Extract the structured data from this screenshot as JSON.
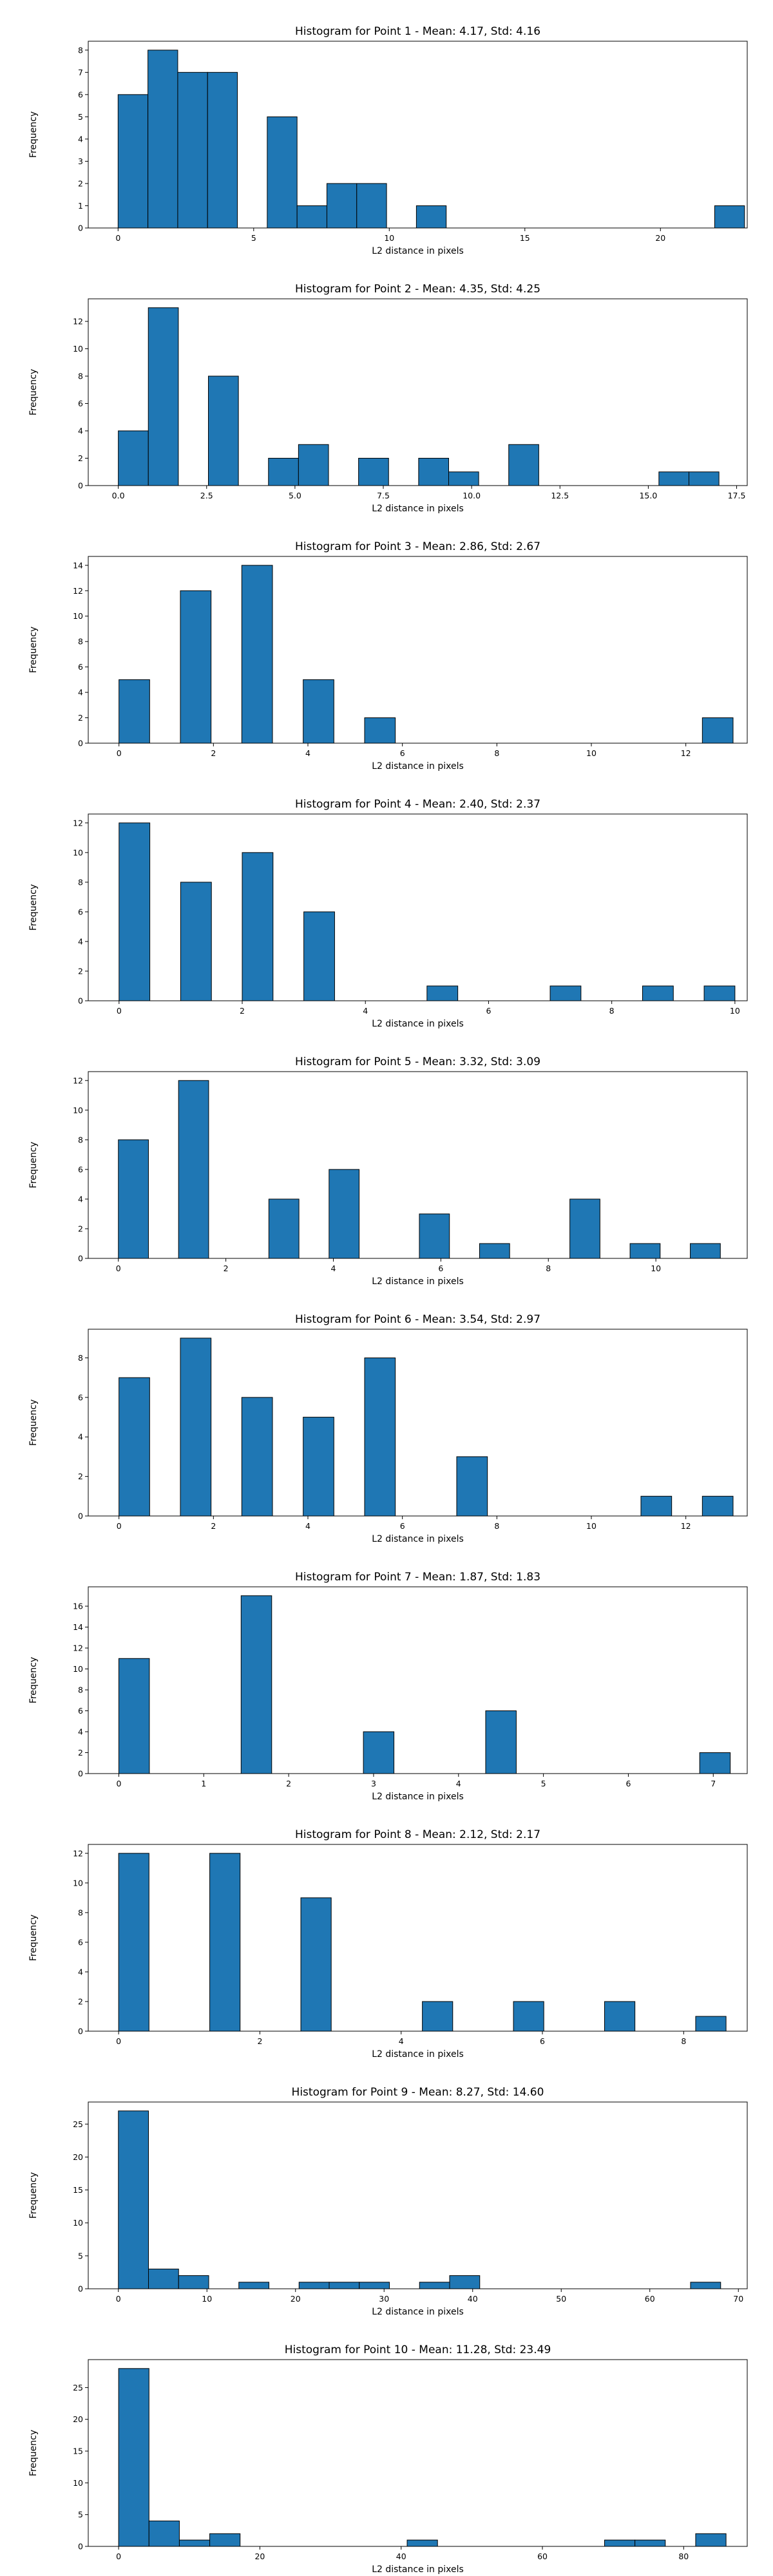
{
  "chart_data": [
    {
      "type": "bar",
      "title": "Histogram for Point 1 - Mean: 4.17, Std: 4.16",
      "xlabel": "L2 distance in pixels",
      "ylabel": "Frequency",
      "xlim": [
        -1.1,
        23.2
      ],
      "ylim": [
        0,
        8.4
      ],
      "xticks": [
        0,
        5,
        10,
        15,
        20
      ],
      "xtick_labels": [
        "0",
        "5",
        "10",
        "15",
        "20"
      ],
      "yticks": [
        0,
        1,
        2,
        3,
        4,
        5,
        6,
        7,
        8
      ],
      "ytick_labels": [
        "0",
        "1",
        "2",
        "3",
        "4",
        "5",
        "6",
        "7",
        "8"
      ],
      "bins": [
        {
          "x0": 0.0,
          "x1": 1.1,
          "count": 6
        },
        {
          "x0": 1.1,
          "x1": 2.2,
          "count": 8
        },
        {
          "x0": 2.2,
          "x1": 3.3,
          "count": 7
        },
        {
          "x0": 3.3,
          "x1": 4.4,
          "count": 7
        },
        {
          "x0": 5.5,
          "x1": 6.6,
          "count": 5
        },
        {
          "x0": 6.6,
          "x1": 7.7,
          "count": 1
        },
        {
          "x0": 7.7,
          "x1": 8.8,
          "count": 2
        },
        {
          "x0": 8.8,
          "x1": 9.9,
          "count": 2
        },
        {
          "x0": 11.0,
          "x1": 12.1,
          "count": 1
        },
        {
          "x0": 22.0,
          "x1": 23.1,
          "count": 1
        }
      ]
    },
    {
      "type": "bar",
      "title": "Histogram for Point 2 - Mean: 4.35, Std: 4.25",
      "xlabel": "L2 distance in pixels",
      "ylabel": "Frequency",
      "xlim": [
        -0.85,
        17.8
      ],
      "ylim": [
        0,
        13.65
      ],
      "xticks": [
        0,
        2.5,
        5,
        7.5,
        10,
        12.5,
        15,
        17.5
      ],
      "xtick_labels": [
        "0.0",
        "2.5",
        "5.0",
        "7.5",
        "10.0",
        "12.5",
        "15.0",
        "17.5"
      ],
      "yticks": [
        0,
        2,
        4,
        6,
        8,
        10,
        12
      ],
      "ytick_labels": [
        "0",
        "2",
        "4",
        "6",
        "8",
        "10",
        "12"
      ],
      "bins": [
        {
          "x0": 0.0,
          "x1": 0.85,
          "count": 4
        },
        {
          "x0": 0.85,
          "x1": 1.7,
          "count": 13
        },
        {
          "x0": 2.55,
          "x1": 3.4,
          "count": 8
        },
        {
          "x0": 4.25,
          "x1": 5.1,
          "count": 2
        },
        {
          "x0": 5.1,
          "x1": 5.95,
          "count": 3
        },
        {
          "x0": 6.8,
          "x1": 7.65,
          "count": 2
        },
        {
          "x0": 8.5,
          "x1": 9.35,
          "count": 2
        },
        {
          "x0": 9.35,
          "x1": 10.2,
          "count": 1
        },
        {
          "x0": 11.05,
          "x1": 11.9,
          "count": 3
        },
        {
          "x0": 15.3,
          "x1": 16.15,
          "count": 1
        },
        {
          "x0": 16.15,
          "x1": 17.0,
          "count": 1
        }
      ]
    },
    {
      "type": "bar",
      "title": "Histogram for Point 3 - Mean: 2.86, Std: 2.67",
      "xlabel": "L2 distance in pixels",
      "ylabel": "Frequency",
      "xlim": [
        -0.65,
        13.3
      ],
      "ylim": [
        0,
        14.7
      ],
      "xticks": [
        0,
        2,
        4,
        6,
        8,
        10,
        12
      ],
      "xtick_labels": [
        "0",
        "2",
        "4",
        "6",
        "8",
        "10",
        "12"
      ],
      "yticks": [
        0,
        2,
        4,
        6,
        8,
        10,
        12,
        14
      ],
      "ytick_labels": [
        "0",
        "2",
        "4",
        "6",
        "8",
        "10",
        "12",
        "14"
      ],
      "bins": [
        {
          "x0": 0.0,
          "x1": 0.65,
          "count": 5
        },
        {
          "x0": 1.3,
          "x1": 1.95,
          "count": 12
        },
        {
          "x0": 2.6,
          "x1": 3.25,
          "count": 14
        },
        {
          "x0": 3.9,
          "x1": 4.55,
          "count": 5
        },
        {
          "x0": 5.2,
          "x1": 5.85,
          "count": 2
        },
        {
          "x0": 12.35,
          "x1": 13.0,
          "count": 2
        }
      ]
    },
    {
      "type": "bar",
      "title": "Histogram for Point 4 - Mean: 2.40, Std: 2.37",
      "xlabel": "L2 distance in pixels",
      "ylabel": "Frequency",
      "xlim": [
        -0.5,
        10.2
      ],
      "ylim": [
        0,
        12.6
      ],
      "xticks": [
        0,
        2,
        4,
        6,
        8,
        10
      ],
      "xtick_labels": [
        "0",
        "2",
        "4",
        "6",
        "8",
        "10"
      ],
      "yticks": [
        0,
        2,
        4,
        6,
        8,
        10,
        12
      ],
      "ytick_labels": [
        "0",
        "2",
        "4",
        "6",
        "8",
        "10",
        "12"
      ],
      "bins": [
        {
          "x0": 0.0,
          "x1": 0.5,
          "count": 12
        },
        {
          "x0": 1.0,
          "x1": 1.5,
          "count": 8
        },
        {
          "x0": 2.0,
          "x1": 2.5,
          "count": 10
        },
        {
          "x0": 3.0,
          "x1": 3.5,
          "count": 6
        },
        {
          "x0": 5.0,
          "x1": 5.5,
          "count": 1
        },
        {
          "x0": 7.0,
          "x1": 7.5,
          "count": 1
        },
        {
          "x0": 8.5,
          "x1": 9.0,
          "count": 1
        },
        {
          "x0": 9.5,
          "x1": 10.0,
          "count": 1
        }
      ]
    },
    {
      "type": "bar",
      "title": "Histogram for Point 5 - Mean: 3.32, Std: 3.09",
      "xlabel": "L2 distance in pixels",
      "ylabel": "Frequency",
      "xlim": [
        -0.56,
        11.7
      ],
      "ylim": [
        0,
        12.6
      ],
      "xticks": [
        0,
        2,
        4,
        6,
        8,
        10
      ],
      "xtick_labels": [
        "0",
        "2",
        "4",
        "6",
        "8",
        "10"
      ],
      "yticks": [
        0,
        2,
        4,
        6,
        8,
        10,
        12
      ],
      "ytick_labels": [
        "0",
        "2",
        "4",
        "6",
        "8",
        "10",
        "12"
      ],
      "bins": [
        {
          "x0": 0.0,
          "x1": 0.56,
          "count": 8
        },
        {
          "x0": 1.12,
          "x1": 1.68,
          "count": 12
        },
        {
          "x0": 2.8,
          "x1": 3.36,
          "count": 4
        },
        {
          "x0": 3.92,
          "x1": 4.48,
          "count": 6
        },
        {
          "x0": 5.6,
          "x1": 6.16,
          "count": 3
        },
        {
          "x0": 6.72,
          "x1": 7.28,
          "count": 1
        },
        {
          "x0": 8.4,
          "x1": 8.96,
          "count": 4
        },
        {
          "x0": 9.52,
          "x1": 10.08,
          "count": 1
        },
        {
          "x0": 10.64,
          "x1": 11.2,
          "count": 1
        }
      ]
    },
    {
      "type": "bar",
      "title": "Histogram for Point 6 - Mean: 3.54, Std: 2.97",
      "xlabel": "L2 distance in pixels",
      "ylabel": "Frequency",
      "xlim": [
        -0.65,
        13.3
      ],
      "ylim": [
        0,
        9.45
      ],
      "xticks": [
        0,
        2,
        4,
        6,
        8,
        10,
        12
      ],
      "xtick_labels": [
        "0",
        "2",
        "4",
        "6",
        "8",
        "10",
        "12"
      ],
      "yticks": [
        0,
        2,
        4,
        6,
        8
      ],
      "ytick_labels": [
        "0",
        "2",
        "4",
        "6",
        "8"
      ],
      "bins": [
        {
          "x0": 0.0,
          "x1": 0.65,
          "count": 7
        },
        {
          "x0": 1.3,
          "x1": 1.95,
          "count": 9
        },
        {
          "x0": 2.6,
          "x1": 3.25,
          "count": 6
        },
        {
          "x0": 3.9,
          "x1": 4.55,
          "count": 5
        },
        {
          "x0": 5.2,
          "x1": 5.85,
          "count": 8
        },
        {
          "x0": 7.15,
          "x1": 7.8,
          "count": 3
        },
        {
          "x0": 11.05,
          "x1": 11.7,
          "count": 1
        },
        {
          "x0": 12.35,
          "x1": 13.0,
          "count": 1
        }
      ]
    },
    {
      "type": "bar",
      "title": "Histogram for Point 7 - Mean: 1.87, Std: 1.83",
      "xlabel": "L2 distance in pixels",
      "ylabel": "Frequency",
      "xlim": [
        -0.36,
        7.4
      ],
      "ylim": [
        0,
        17.85
      ],
      "xticks": [
        0,
        1,
        2,
        3,
        4,
        5,
        6,
        7
      ],
      "xtick_labels": [
        "0",
        "1",
        "2",
        "3",
        "4",
        "5",
        "6",
        "7"
      ],
      "yticks": [
        0,
        2,
        4,
        6,
        8,
        10,
        12,
        14,
        16
      ],
      "ytick_labels": [
        "0",
        "2",
        "4",
        "6",
        "8",
        "10",
        "12",
        "14",
        "16"
      ],
      "bins": [
        {
          "x0": 0.0,
          "x1": 0.36,
          "count": 11
        },
        {
          "x0": 1.44,
          "x1": 1.8,
          "count": 17
        },
        {
          "x0": 2.88,
          "x1": 3.24,
          "count": 4
        },
        {
          "x0": 4.32,
          "x1": 4.68,
          "count": 6
        },
        {
          "x0": 6.84,
          "x1": 7.2,
          "count": 2
        }
      ]
    },
    {
      "type": "bar",
      "title": "Histogram for Point 8 - Mean: 2.12, Std: 2.17",
      "xlabel": "L2 distance in pixels",
      "ylabel": "Frequency",
      "xlim": [
        -0.43,
        8.9
      ],
      "ylim": [
        0,
        12.6
      ],
      "xticks": [
        0,
        2,
        4,
        6,
        8
      ],
      "xtick_labels": [
        "0",
        "2",
        "4",
        "6",
        "8"
      ],
      "yticks": [
        0,
        2,
        4,
        6,
        8,
        10,
        12
      ],
      "ytick_labels": [
        "0",
        "2",
        "4",
        "6",
        "8",
        "10",
        "12"
      ],
      "bins": [
        {
          "x0": 0.0,
          "x1": 0.43,
          "count": 12
        },
        {
          "x0": 1.29,
          "x1": 1.72,
          "count": 12
        },
        {
          "x0": 2.58,
          "x1": 3.01,
          "count": 9
        },
        {
          "x0": 4.3,
          "x1": 4.73,
          "count": 2
        },
        {
          "x0": 5.59,
          "x1": 6.02,
          "count": 2
        },
        {
          "x0": 6.88,
          "x1": 7.31,
          "count": 2
        },
        {
          "x0": 8.17,
          "x1": 8.6,
          "count": 1
        }
      ]
    },
    {
      "type": "bar",
      "title": "Histogram for Point 9 - Mean: 8.27, Std: 14.60",
      "xlabel": "L2 distance in pixels",
      "ylabel": "Frequency",
      "xlim": [
        -3.4,
        71.0
      ],
      "ylim": [
        0,
        28.35
      ],
      "xticks": [
        0,
        10,
        20,
        30,
        40,
        50,
        60,
        70
      ],
      "xtick_labels": [
        "0",
        "10",
        "20",
        "30",
        "40",
        "50",
        "60",
        "70"
      ],
      "yticks": [
        0,
        5,
        10,
        15,
        20,
        25
      ],
      "ytick_labels": [
        "0",
        "5",
        "10",
        "15",
        "20",
        "25"
      ],
      "bins": [
        {
          "x0": 0.0,
          "x1": 3.4,
          "count": 27
        },
        {
          "x0": 3.4,
          "x1": 6.8,
          "count": 3
        },
        {
          "x0": 6.8,
          "x1": 10.2,
          "count": 2
        },
        {
          "x0": 13.6,
          "x1": 17.0,
          "count": 1
        },
        {
          "x0": 20.4,
          "x1": 23.8,
          "count": 1
        },
        {
          "x0": 23.8,
          "x1": 27.2,
          "count": 1
        },
        {
          "x0": 27.2,
          "x1": 30.6,
          "count": 1
        },
        {
          "x0": 34.0,
          "x1": 37.4,
          "count": 1
        },
        {
          "x0": 37.4,
          "x1": 40.8,
          "count": 2
        },
        {
          "x0": 64.6,
          "x1": 68.0,
          "count": 1
        }
      ]
    },
    {
      "type": "bar",
      "title": "Histogram for Point 10 - Mean: 11.28, Std: 23.49",
      "xlabel": "L2 distance in pixels",
      "ylabel": "Frequency",
      "xlim": [
        -4.3,
        89.0
      ],
      "ylim": [
        0,
        29.4
      ],
      "xticks": [
        0,
        20,
        40,
        60,
        80
      ],
      "xtick_labels": [
        "0",
        "20",
        "40",
        "60",
        "80"
      ],
      "yticks": [
        0,
        5,
        10,
        15,
        20,
        25
      ],
      "ytick_labels": [
        "0",
        "5",
        "10",
        "15",
        "20",
        "25"
      ],
      "bins": [
        {
          "x0": 0.0,
          "x1": 4.3,
          "count": 28
        },
        {
          "x0": 4.3,
          "x1": 8.6,
          "count": 4
        },
        {
          "x0": 8.6,
          "x1": 12.9,
          "count": 1
        },
        {
          "x0": 12.9,
          "x1": 17.2,
          "count": 2
        },
        {
          "x0": 40.85,
          "x1": 45.15,
          "count": 1
        },
        {
          "x0": 68.8,
          "x1": 73.1,
          "count": 1
        },
        {
          "x0": 73.1,
          "x1": 77.4,
          "count": 1
        },
        {
          "x0": 81.7,
          "x1": 86.0,
          "count": 2
        }
      ]
    }
  ]
}
